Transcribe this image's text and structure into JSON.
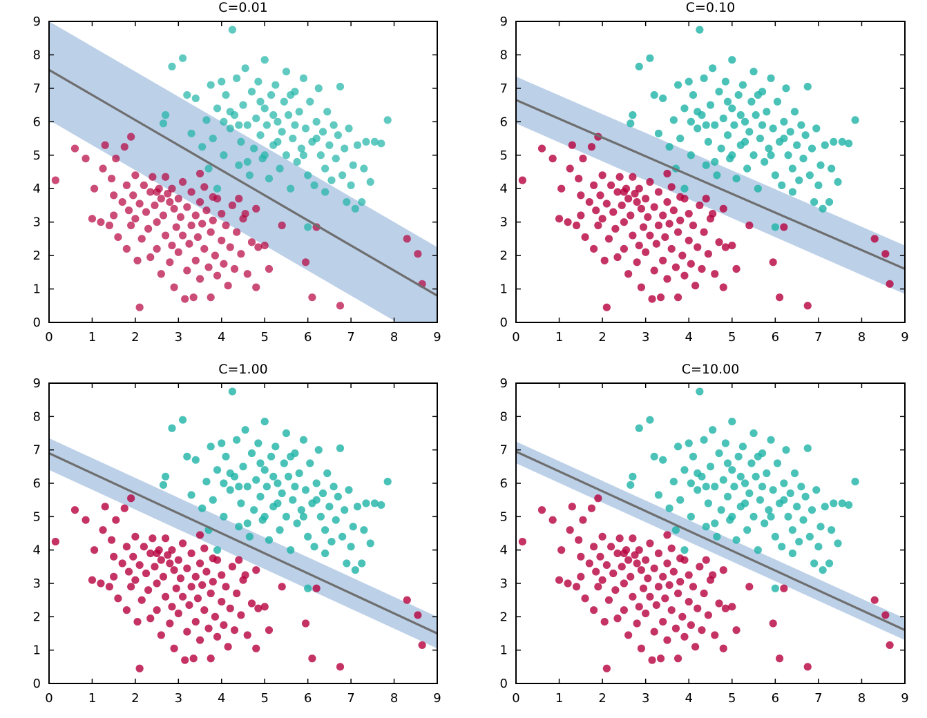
{
  "figure": {
    "background": "#ffffff"
  },
  "colors": {
    "class_a": "#b5003c",
    "class_b": "#1db3a6",
    "margin_band": "#b0c8e4",
    "boundary": "#6e6e6e"
  },
  "chart_data": [
    {
      "type": "scatter",
      "title": "C=0.01",
      "xlim": [
        0,
        9
      ],
      "ylim": [
        0,
        9
      ],
      "xticks": [
        "0",
        "1",
        "2",
        "3",
        "4",
        "5",
        "6",
        "7",
        "8",
        "9"
      ],
      "yticks": [
        "0",
        "1",
        "2",
        "3",
        "4",
        "5",
        "6",
        "7",
        "8",
        "9"
      ],
      "boundary": {
        "y_at_x0": 7.55,
        "y_at_x9": 0.8
      },
      "margin": {
        "upper_at_x0": 9.0,
        "upper_at_x9": 2.25,
        "lower_at_x0": 6.05,
        "lower_at_x9": -0.7
      },
      "point_alpha": 0.7
    },
    {
      "type": "scatter",
      "title": "C=0.10",
      "xlim": [
        0,
        9
      ],
      "ylim": [
        0,
        9
      ],
      "xticks": [
        "0",
        "1",
        "2",
        "3",
        "4",
        "5",
        "6",
        "7",
        "8",
        "9"
      ],
      "yticks": [
        "0",
        "1",
        "2",
        "3",
        "4",
        "5",
        "6",
        "7",
        "8",
        "9"
      ],
      "boundary": {
        "y_at_x0": 6.65,
        "y_at_x9": 1.6
      },
      "margin": {
        "upper_at_x0": 7.35,
        "upper_at_x9": 2.3,
        "lower_at_x0": 5.95,
        "lower_at_x9": 0.85
      },
      "point_alpha": 0.8
    },
    {
      "type": "scatter",
      "title": "C=1.00",
      "xlim": [
        0,
        9
      ],
      "ylim": [
        0,
        9
      ],
      "xticks": [
        "0",
        "1",
        "2",
        "3",
        "4",
        "5",
        "6",
        "7",
        "8",
        "9"
      ],
      "yticks": [
        "0",
        "1",
        "2",
        "3",
        "4",
        "5",
        "6",
        "7",
        "8",
        "9"
      ],
      "boundary": {
        "y_at_x0": 6.9,
        "y_at_x9": 1.5
      },
      "margin": {
        "upper_at_x0": 7.35,
        "upper_at_x9": 2.0,
        "lower_at_x0": 6.4,
        "lower_at_x9": 1.05
      },
      "point_alpha": 0.8
    },
    {
      "type": "scatter",
      "title": "C=10.00",
      "xlim": [
        0,
        9
      ],
      "ylim": [
        0,
        9
      ],
      "xticks": [
        "0",
        "1",
        "2",
        "3",
        "4",
        "5",
        "6",
        "7",
        "8",
        "9"
      ],
      "yticks": [
        "0",
        "1",
        "2",
        "3",
        "4",
        "5",
        "6",
        "7",
        "8",
        "9"
      ],
      "boundary": {
        "y_at_x0": 6.95,
        "y_at_x9": 1.6
      },
      "margin": {
        "upper_at_x0": 7.25,
        "upper_at_x9": 1.95,
        "lower_at_x0": 6.6,
        "lower_at_x9": 1.3
      },
      "point_alpha": 0.8
    }
  ],
  "points": {
    "class_a": [
      [
        0.15,
        4.25
      ],
      [
        0.6,
        5.2
      ],
      [
        0.85,
        4.9
      ],
      [
        1.0,
        3.1
      ],
      [
        1.05,
        4.0
      ],
      [
        1.2,
        3.0
      ],
      [
        1.25,
        4.6
      ],
      [
        1.3,
        5.3
      ],
      [
        1.4,
        2.9
      ],
      [
        1.45,
        4.3
      ],
      [
        1.5,
        3.8
      ],
      [
        1.5,
        3.2
      ],
      [
        1.55,
        4.9
      ],
      [
        1.6,
        2.55
      ],
      [
        1.7,
        3.6
      ],
      [
        1.75,
        5.25
      ],
      [
        1.8,
        4.1
      ],
      [
        1.8,
        2.2
      ],
      [
        1.85,
        3.35
      ],
      [
        1.9,
        5.55
      ],
      [
        1.9,
        2.9
      ],
      [
        1.95,
        3.8
      ],
      [
        2.0,
        3.1
      ],
      [
        2.0,
        4.4
      ],
      [
        2.05,
        1.85
      ],
      [
        2.1,
        3.55
      ],
      [
        2.1,
        0.45
      ],
      [
        2.15,
        2.5
      ],
      [
        2.2,
        4.1
      ],
      [
        2.25,
        3.3
      ],
      [
        2.3,
        2.8
      ],
      [
        2.35,
        3.9
      ],
      [
        2.35,
        1.95
      ],
      [
        2.4,
        4.35
      ],
      [
        2.45,
        3.5
      ],
      [
        2.5,
        2.2
      ],
      [
        2.5,
        3.0
      ],
      [
        2.55,
        4.0
      ],
      [
        2.6,
        3.7
      ],
      [
        2.6,
        1.45
      ],
      [
        2.65,
        3.2
      ],
      [
        2.7,
        2.6
      ],
      [
        2.7,
        4.35
      ],
      [
        2.75,
        3.85
      ],
      [
        2.8,
        3.6
      ],
      [
        2.8,
        1.8
      ],
      [
        2.85,
        2.3
      ],
      [
        2.85,
        4.0
      ],
      [
        2.9,
        3.4
      ],
      [
        2.9,
        1.05
      ],
      [
        2.95,
        2.85
      ],
      [
        3.0,
        3.7
      ],
      [
        3.0,
        2.1
      ],
      [
        3.05,
        3.15
      ],
      [
        3.1,
        4.2
      ],
      [
        3.1,
        2.6
      ],
      [
        3.15,
        0.7
      ],
      [
        3.2,
        3.45
      ],
      [
        3.2,
        1.55
      ],
      [
        3.25,
        2.35
      ],
      [
        3.3,
        3.9
      ],
      [
        3.3,
        2.9
      ],
      [
        3.35,
        0.75
      ],
      [
        3.4,
        3.2
      ],
      [
        3.4,
        1.85
      ],
      [
        3.45,
        2.55
      ],
      [
        3.5,
        3.6
      ],
      [
        3.5,
        1.3
      ],
      [
        3.55,
        2.95
      ],
      [
        3.6,
        2.2
      ],
      [
        3.6,
        4.05
      ],
      [
        3.65,
        3.35
      ],
      [
        3.7,
        1.65
      ],
      [
        3.75,
        2.7
      ],
      [
        3.75,
        0.75
      ],
      [
        3.8,
        3.05
      ],
      [
        3.85,
        2.0
      ],
      [
        3.9,
        3.7
      ],
      [
        3.9,
        1.4
      ],
      [
        4.0,
        2.45
      ],
      [
        4.0,
        3.25
      ],
      [
        4.05,
        1.75
      ],
      [
        4.1,
        2.9
      ],
      [
        4.15,
        1.1
      ],
      [
        4.2,
        2.25
      ],
      [
        4.25,
        3.5
      ],
      [
        4.3,
        1.6
      ],
      [
        4.35,
        2.7
      ],
      [
        4.45,
        2.05
      ],
      [
        4.5,
        3.1
      ],
      [
        4.6,
        1.45
      ],
      [
        4.7,
        2.4
      ],
      [
        4.8,
        1.05
      ],
      [
        4.85,
        2.25
      ],
      [
        5.0,
        2.3
      ],
      [
        5.1,
        1.6
      ],
      [
        5.4,
        2.9
      ],
      [
        5.95,
        1.8
      ],
      [
        6.1,
        0.75
      ],
      [
        6.2,
        2.85
      ],
      [
        6.75,
        0.5
      ],
      [
        8.3,
        2.5
      ],
      [
        8.55,
        2.05
      ],
      [
        8.65,
        1.15
      ],
      [
        3.5,
        4.45
      ],
      [
        3.8,
        3.75
      ],
      [
        4.4,
        3.7
      ],
      [
        4.55,
        3.25
      ],
      [
        4.8,
        3.4
      ],
      [
        2.5,
        3.9
      ]
    ],
    "class_b": [
      [
        2.65,
        5.95
      ],
      [
        2.7,
        6.2
      ],
      [
        2.85,
        7.65
      ],
      [
        3.1,
        7.9
      ],
      [
        3.2,
        6.8
      ],
      [
        3.3,
        5.65
      ],
      [
        3.4,
        6.7
      ],
      [
        3.55,
        5.25
      ],
      [
        3.65,
        6.05
      ],
      [
        3.75,
        7.1
      ],
      [
        3.8,
        5.5
      ],
      [
        3.9,
        6.4
      ],
      [
        4.0,
        7.2
      ],
      [
        4.05,
        5.0
      ],
      [
        4.1,
        6.8
      ],
      [
        4.2,
        5.8
      ],
      [
        4.25,
        8.75
      ],
      [
        4.3,
        6.2
      ],
      [
        4.35,
        7.3
      ],
      [
        4.4,
        4.7
      ],
      [
        4.45,
        5.4
      ],
      [
        4.5,
        6.5
      ],
      [
        4.55,
        7.6
      ],
      [
        4.6,
        5.9
      ],
      [
        4.65,
        4.4
      ],
      [
        4.7,
        6.9
      ],
      [
        4.75,
        5.2
      ],
      [
        4.8,
        6.1
      ],
      [
        4.85,
        7.2
      ],
      [
        4.9,
        5.6
      ],
      [
        4.95,
        4.9
      ],
      [
        5.0,
        6.4
      ],
      [
        5.0,
        7.85
      ],
      [
        5.05,
        5.9
      ],
      [
        5.1,
        4.3
      ],
      [
        5.15,
        6.8
      ],
      [
        5.2,
        5.3
      ],
      [
        5.25,
        7.1
      ],
      [
        5.3,
        6.0
      ],
      [
        5.35,
        4.6
      ],
      [
        5.4,
        5.7
      ],
      [
        5.45,
        6.6
      ],
      [
        5.5,
        7.5
      ],
      [
        5.5,
        5.0
      ],
      [
        5.55,
        6.2
      ],
      [
        5.6,
        4.0
      ],
      [
        5.65,
        5.5
      ],
      [
        5.7,
        6.9
      ],
      [
        5.75,
        4.8
      ],
      [
        5.8,
        6.3
      ],
      [
        5.85,
        5.2
      ],
      [
        5.9,
        7.3
      ],
      [
        5.95,
        5.8
      ],
      [
        6.0,
        4.4
      ],
      [
        6.05,
        6.6
      ],
      [
        6.1,
        5.4
      ],
      [
        6.15,
        4.1
      ],
      [
        6.2,
        6.0
      ],
      [
        6.25,
        7.0
      ],
      [
        6.3,
        5.0
      ],
      [
        6.35,
        5.7
      ],
      [
        6.4,
        4.6
      ],
      [
        6.45,
        6.3
      ],
      [
        6.5,
        5.3
      ],
      [
        6.55,
        4.25
      ],
      [
        6.6,
        5.9
      ],
      [
        6.65,
        4.9
      ],
      [
        6.7,
        5.6
      ],
      [
        6.75,
        7.05
      ],
      [
        6.8,
        4.4
      ],
      [
        6.85,
        5.2
      ],
      [
        6.9,
        3.6
      ],
      [
        6.95,
        5.8
      ],
      [
        7.0,
        4.1
      ],
      [
        7.05,
        4.7
      ],
      [
        7.1,
        3.4
      ],
      [
        7.15,
        5.3
      ],
      [
        7.25,
        3.6
      ],
      [
        7.3,
        4.6
      ],
      [
        7.35,
        5.4
      ],
      [
        7.45,
        4.2
      ],
      [
        7.55,
        5.4
      ],
      [
        7.7,
        5.35
      ],
      [
        7.85,
        6.05
      ],
      [
        4.2,
        6.3
      ],
      [
        4.6,
        4.8
      ],
      [
        5.2,
        6.2
      ],
      [
        5.6,
        6.8
      ],
      [
        5.9,
        5.0
      ],
      [
        6.2,
        5.5
      ],
      [
        4.9,
        6.6
      ],
      [
        5.3,
        5.4
      ],
      [
        5.7,
        5.9
      ],
      [
        4.4,
        5.9
      ],
      [
        3.7,
        4.6
      ],
      [
        3.9,
        4.0
      ],
      [
        6.0,
        2.85
      ],
      [
        4.05,
        6.0
      ],
      [
        5.0,
        5.0
      ],
      [
        6.4,
        3.9
      ]
    ]
  }
}
